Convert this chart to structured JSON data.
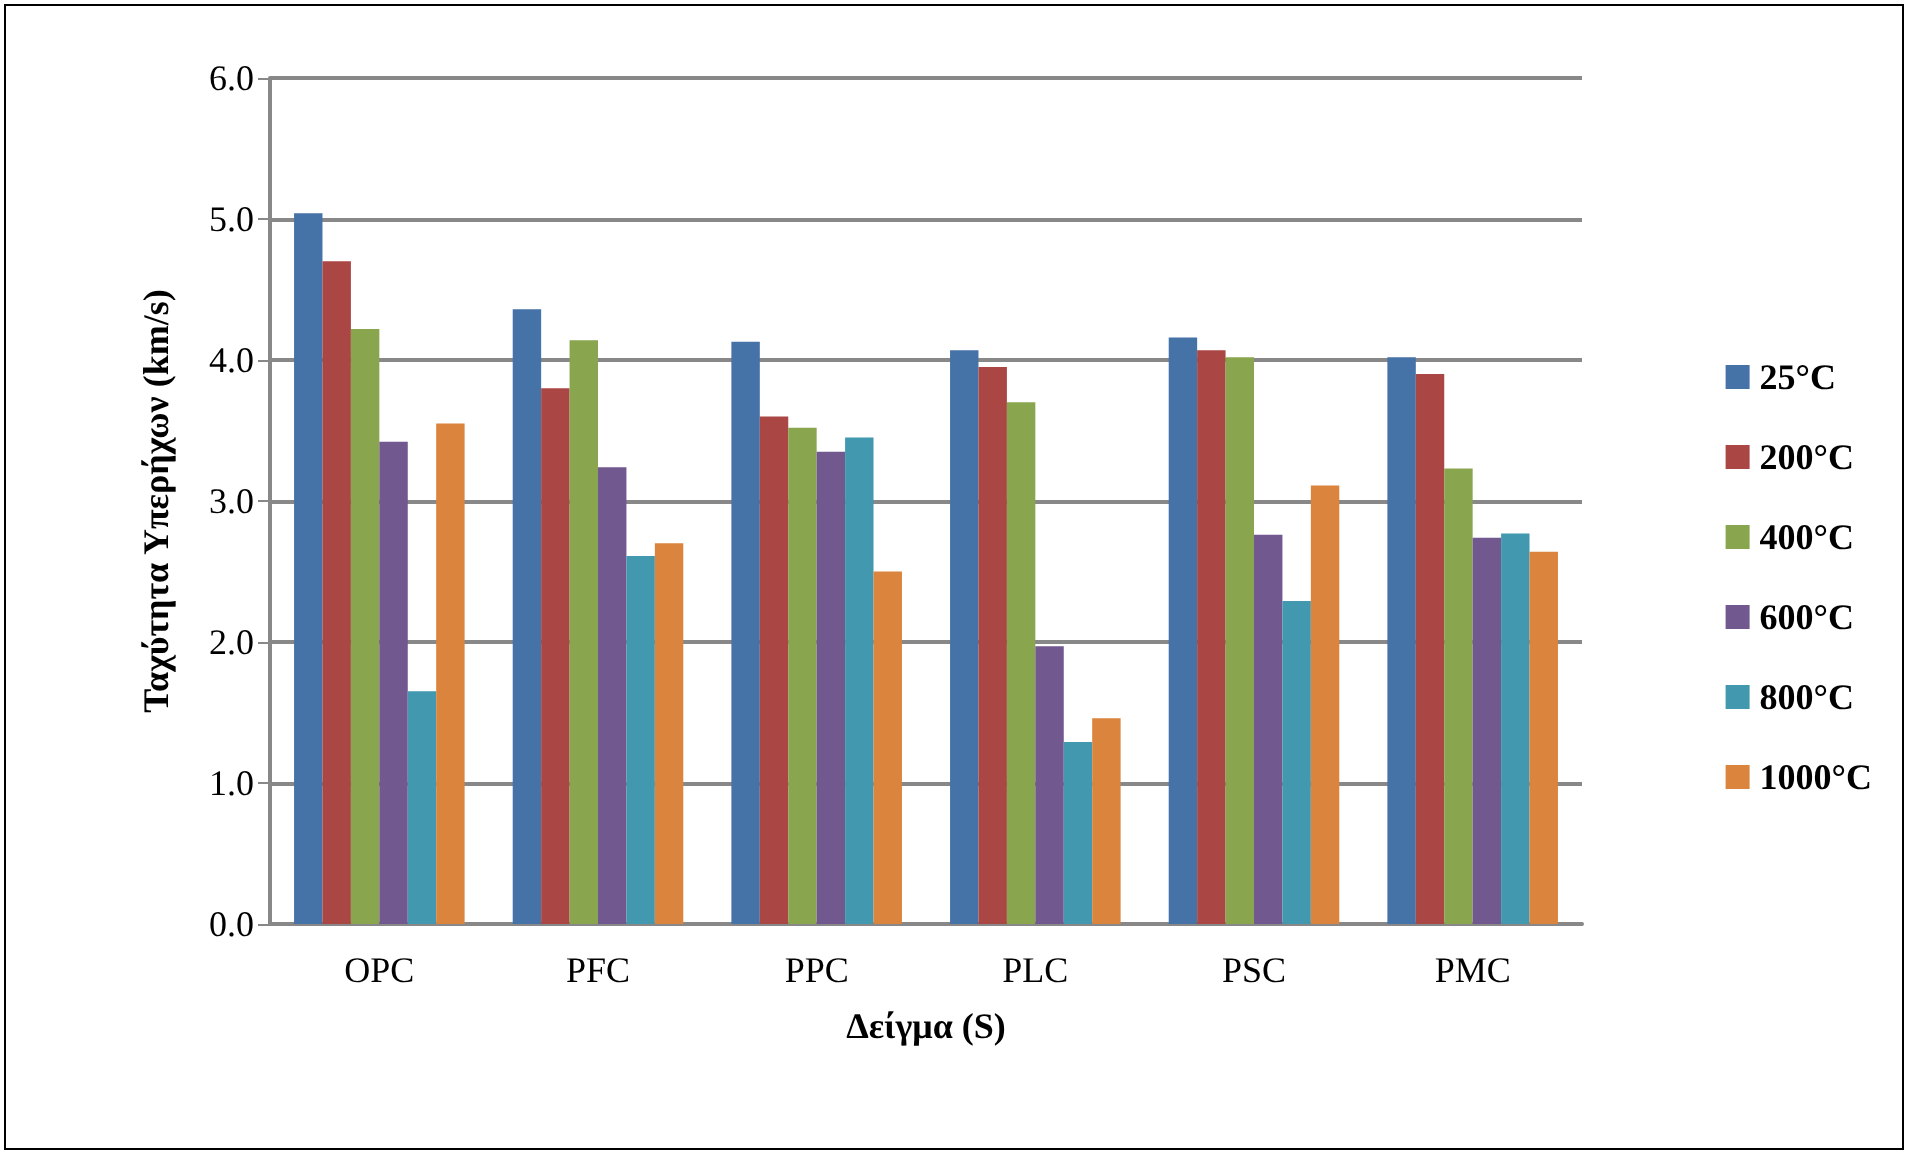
{
  "chart_data": {
    "type": "bar",
    "xlabel": "Δείγμα (S)",
    "ylabel": "Ταχύτητα Υπερήχων (km/s)",
    "categories": [
      "OPC",
      "PFC",
      "PPC",
      "PLC",
      "PSC",
      "PMC"
    ],
    "series": [
      {
        "name": "25°C",
        "color": "#4572a7",
        "values": [
          5.04,
          4.36,
          4.13,
          4.07,
          4.16,
          4.02
        ]
      },
      {
        "name": "200°C",
        "color": "#aa4643",
        "values": [
          4.7,
          3.8,
          3.6,
          3.95,
          4.07,
          3.9
        ]
      },
      {
        "name": "400°C",
        "color": "#89a54e",
        "values": [
          4.22,
          4.14,
          3.52,
          3.7,
          4.02,
          3.23
        ]
      },
      {
        "name": "600°C",
        "color": "#71588f",
        "values": [
          3.42,
          3.24,
          3.35,
          1.97,
          2.76,
          2.74
        ]
      },
      {
        "name": "800°C",
        "color": "#4198af",
        "values": [
          1.65,
          2.61,
          3.45,
          1.29,
          2.29,
          2.77
        ]
      },
      {
        "name": "1000°C",
        "color": "#db843d",
        "values": [
          3.55,
          2.7,
          2.5,
          1.46,
          3.11,
          2.64
        ]
      }
    ],
    "ylim": [
      0,
      6
    ],
    "yticks": [
      {
        "value": 0,
        "label": "0.0"
      },
      {
        "value": 1,
        "label": "1.0"
      },
      {
        "value": 2,
        "label": "2.0"
      },
      {
        "value": 3,
        "label": "3.0"
      },
      {
        "value": 4,
        "label": "4.0"
      },
      {
        "value": 5,
        "label": "5.0"
      },
      {
        "value": 6,
        "label": "6.0"
      }
    ],
    "grid": "y",
    "legend": "right"
  }
}
